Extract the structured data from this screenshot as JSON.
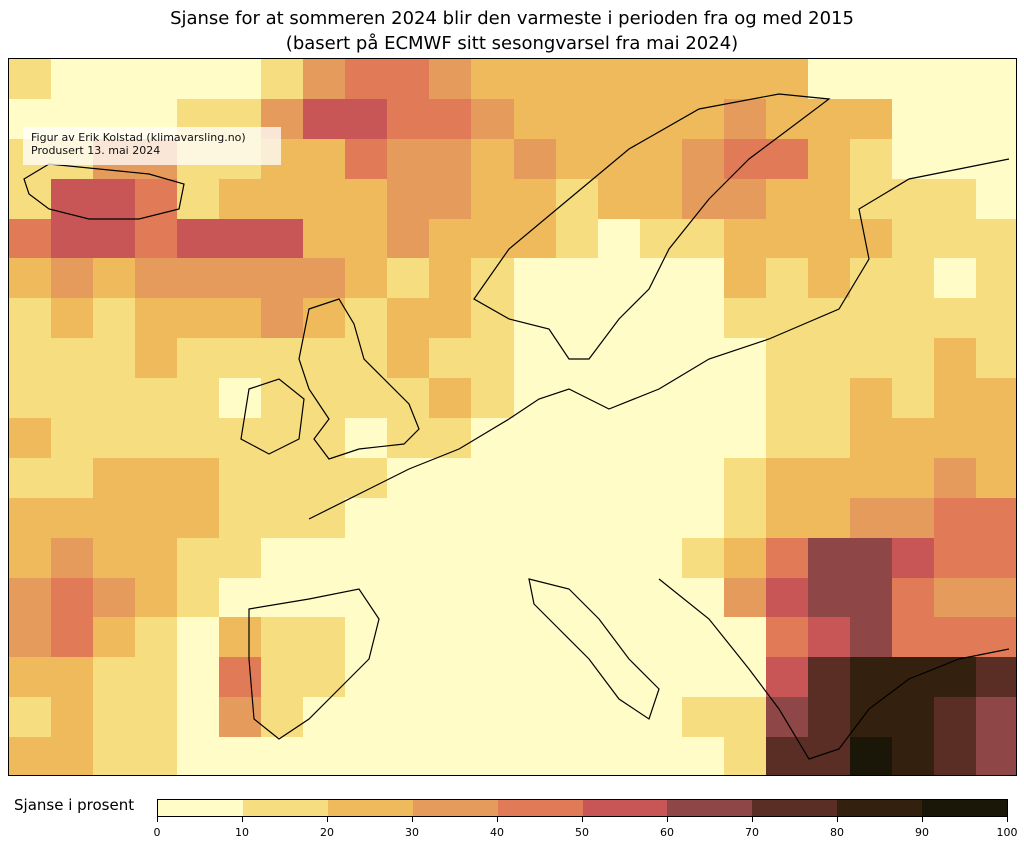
{
  "title_line1": "Sjanse for at sommeren 2024 blir den varmeste i perioden fra og med 2015",
  "title_line2": "(basert på ECMWF sitt sesongvarsel fra mai 2024)",
  "credit_line1": "Figur av Erik Kolstad (klimavarsling.no)",
  "credit_line2": "Produsert 13. mai 2024",
  "colorbar": {
    "label": "Sjanse i prosent",
    "ticks": [
      "0",
      "10",
      "20",
      "30",
      "40",
      "50",
      "60",
      "70",
      "80",
      "90",
      "100"
    ],
    "colors": [
      "#fffcc8",
      "#f6de80",
      "#eeba5c",
      "#e59b5b",
      "#e17a56",
      "#c85656",
      "#8e4646",
      "#5a2d25",
      "#33200f",
      "#1a1708"
    ]
  },
  "chart_data": {
    "type": "heatmap",
    "title": "Sjanse for at sommeren 2024 blir den varmeste i perioden fra og med 2015",
    "units": "percent",
    "bin_edges": [
      0,
      10,
      20,
      30,
      40,
      50,
      60,
      70,
      80,
      90,
      100
    ],
    "note": "approximate grid of colour-bin indices (0 = 0–10 %, 9 = 90–100 %), rows north to south, columns west to east",
    "grid": [
      "100000134432222222200000",
      "000011355443222223222000",
      "113311224332322234421000",
      "155412222332212233221110",
      "455455522322210112222111",
      "232333332121000002121101",
      "121222321221000001111111",
      "111211111211000000111121",
      "111110111121000000112122",
      "211111110110000000112222",
      "112221111000000001222232",
      "222221110000000001223344",
      "232211000000000012466544",
      "343210000000000003566433",
      "342102110000000000456444",
      "221104110000000000578887",
      "121103100000000011678876",
      "221100000000000001779876"
    ]
  }
}
